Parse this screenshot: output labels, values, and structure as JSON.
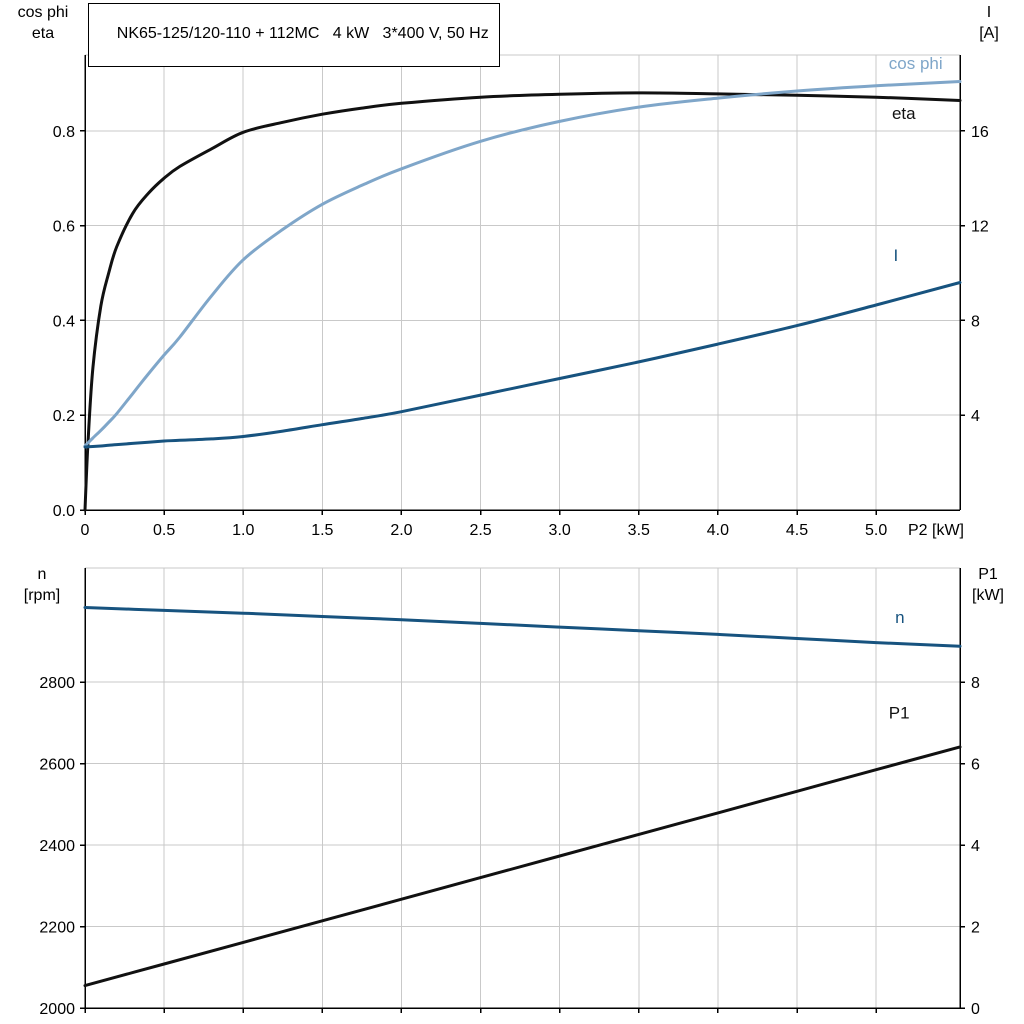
{
  "axis_titles": {
    "top_left": [
      "cos phi",
      "eta"
    ],
    "top_right": [
      "I",
      "[A]"
    ],
    "bottom_left": [
      "n",
      "[rpm]"
    ],
    "bottom_right": [
      "P1",
      "[kW]"
    ]
  },
  "colors": {
    "black": "#111111",
    "light_blue": "#7fa6c9",
    "dark_blue": "#17537f",
    "grid": "#c9c9c9",
    "axis": "#000000",
    "background": "#ffffff"
  },
  "chart_data": [
    {
      "type": "line",
      "name": "motor-performance",
      "title": "NK65-125/120-110 + 112MC   4 kW   3*400 V, 50 Hz",
      "grid": true,
      "legend_position": "inline-labels",
      "x_axis": {
        "label": "P2 [kW]",
        "min": 0,
        "max": 5.53,
        "ticks": [
          0,
          0.5,
          1,
          1.5,
          2,
          2.5,
          3,
          3.5,
          4,
          4.5,
          5
        ],
        "tick_labels": [
          "0",
          "0.5",
          "1.0",
          "1.5",
          "2.0",
          "2.5",
          "3.0",
          "3.5",
          "4.0",
          "4.5",
          "5.0"
        ]
      },
      "y_left": {
        "label": "cos phi / eta",
        "min": 0,
        "max": 0.96,
        "ticks": [
          0,
          0.2,
          0.4,
          0.6,
          0.8
        ],
        "tick_labels": [
          "0.0",
          "0.2",
          "0.4",
          "0.6",
          "0.8"
        ]
      },
      "y_right": {
        "label": "I [A]",
        "min": 0,
        "max": 19.2,
        "ticks": [
          4,
          8,
          12,
          16
        ],
        "tick_labels": [
          "4",
          "8",
          "12",
          "16"
        ]
      },
      "series": [
        {
          "name": "eta",
          "axis": "left",
          "color": "black",
          "label": "eta",
          "label_at": [
            5.1,
            0.825
          ],
          "x": [
            0,
            0.02,
            0.05,
            0.1,
            0.15,
            0.2,
            0.3,
            0.4,
            0.5,
            0.6,
            0.8,
            1.0,
            1.25,
            1.5,
            1.75,
            2.0,
            2.5,
            3.0,
            3.5,
            4.0,
            4.5,
            5.0,
            5.53
          ],
          "y": [
            0,
            0.15,
            0.3,
            0.43,
            0.5,
            0.555,
            0.625,
            0.668,
            0.7,
            0.725,
            0.762,
            0.797,
            0.818,
            0.835,
            0.848,
            0.858,
            0.871,
            0.877,
            0.88,
            0.878,
            0.875,
            0.871,
            0.864
          ]
        },
        {
          "name": "cos phi",
          "axis": "left",
          "color": "light_blue",
          "label": "cos phi",
          "label_at": [
            5.08,
            0.93
          ],
          "x": [
            0,
            0.02,
            0.05,
            0.1,
            0.15,
            0.2,
            0.3,
            0.4,
            0.5,
            0.6,
            0.8,
            1.0,
            1.25,
            1.5,
            1.75,
            2.0,
            2.5,
            3.0,
            3.5,
            4.0,
            4.5,
            5.0,
            5.53
          ],
          "y": [
            0.135,
            0.142,
            0.152,
            0.168,
            0.185,
            0.203,
            0.245,
            0.287,
            0.327,
            0.365,
            0.452,
            0.528,
            0.592,
            0.645,
            0.685,
            0.72,
            0.778,
            0.82,
            0.85,
            0.869,
            0.884,
            0.895,
            0.904
          ]
        },
        {
          "name": "I",
          "axis": "right",
          "color": "dark_blue",
          "label": "I",
          "label_at": [
            5.11,
            10.5
          ],
          "x": [
            0,
            0.02,
            0.05,
            0.1,
            0.15,
            0.2,
            0.3,
            0.4,
            0.5,
            0.6,
            0.8,
            1.0,
            1.25,
            1.5,
            1.75,
            2.0,
            2.5,
            3.0,
            3.5,
            4.0,
            4.5,
            5.0,
            5.53
          ],
          "y": [
            2.66,
            2.67,
            2.68,
            2.7,
            2.73,
            2.76,
            2.81,
            2.86,
            2.91,
            2.94,
            3.0,
            3.1,
            3.33,
            3.6,
            3.86,
            4.15,
            4.85,
            5.55,
            6.25,
            7.0,
            7.78,
            8.65,
            9.6
          ]
        }
      ]
    },
    {
      "type": "line",
      "name": "speed-and-input-power",
      "title": "",
      "grid": true,
      "legend_position": "inline-labels",
      "x_axis": {
        "label": "",
        "min": 0,
        "max": 5.53,
        "ticks": [
          0,
          0.5,
          1,
          1.5,
          2,
          2.5,
          3,
          3.5,
          4,
          4.5,
          5
        ],
        "tick_labels": []
      },
      "y_left": {
        "label": "n [rpm]",
        "min": 2000,
        "max": 3080,
        "ticks": [
          2000,
          2200,
          2400,
          2600,
          2800
        ],
        "tick_labels": [
          "2000",
          "2200",
          "2400",
          "2600",
          "2800"
        ]
      },
      "y_right": {
        "label": "P1 [kW]",
        "min": 0,
        "max": 10.8,
        "ticks": [
          0,
          2,
          4,
          6,
          8
        ],
        "tick_labels": [
          "0",
          "2",
          "4",
          "6",
          "8"
        ]
      },
      "series": [
        {
          "name": "n",
          "axis": "left",
          "color": "dark_blue",
          "label": "n",
          "label_at": [
            5.12,
            2945
          ],
          "x": [
            0,
            0.5,
            1,
            1.5,
            2,
            2.5,
            3,
            3.5,
            4,
            4.5,
            5,
            5.53
          ],
          "y": [
            2983,
            2976,
            2969,
            2961,
            2953,
            2944,
            2935,
            2926,
            2917,
            2907,
            2897,
            2888
          ]
        },
        {
          "name": "P1",
          "axis": "right",
          "color": "black",
          "label": "P1",
          "label_at": [
            5.08,
            7.1
          ],
          "x": [
            0,
            0.5,
            1,
            1.5,
            2,
            2.5,
            3,
            3.5,
            4,
            4.5,
            5,
            5.53
          ],
          "y": [
            0.55,
            1.08,
            1.61,
            2.14,
            2.67,
            3.2,
            3.73,
            4.26,
            4.79,
            5.32,
            5.85,
            6.41
          ]
        }
      ]
    }
  ]
}
